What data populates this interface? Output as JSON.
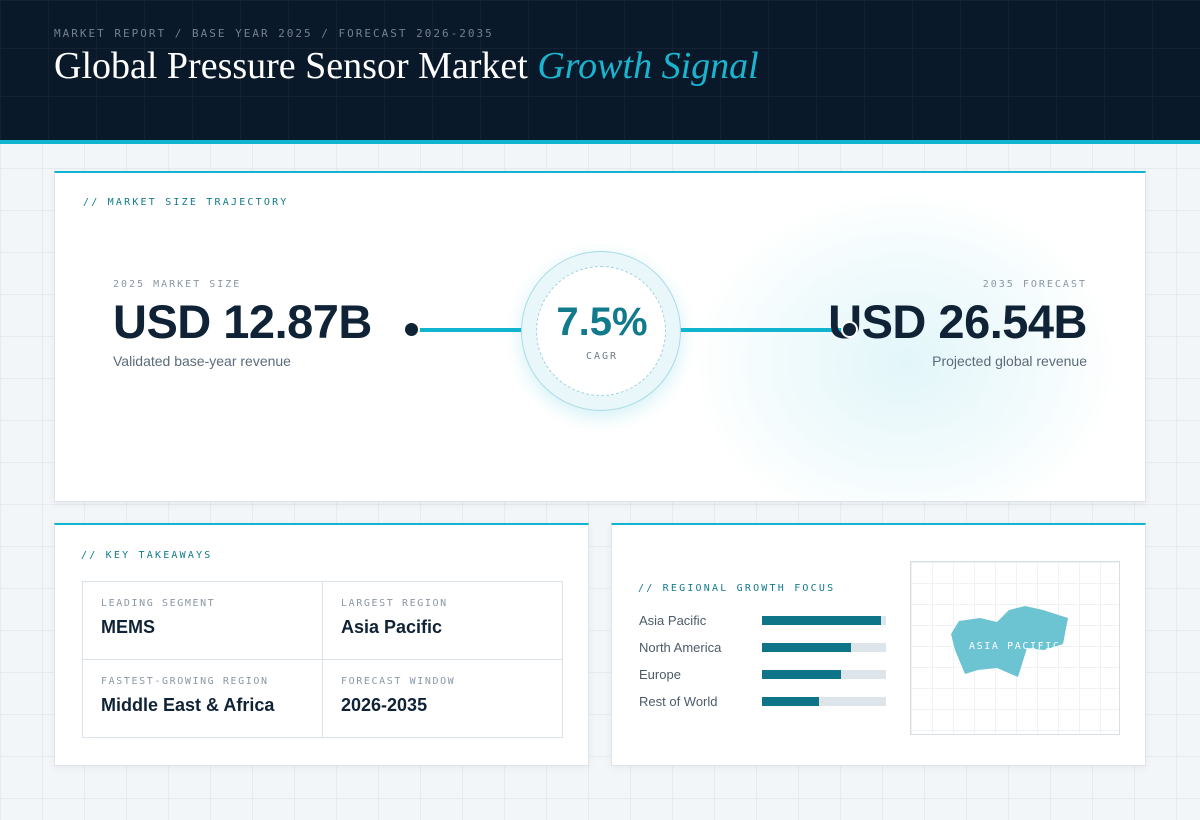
{
  "header": {
    "breadcrumb": "MARKET REPORT / BASE YEAR 2025 / FORECAST 2026-2035",
    "title_main": "Global Pressure Sensor Market",
    "title_accent": "Growth Signal"
  },
  "trajectory": {
    "section_label": "// MARKET SIZE TRAJECTORY",
    "base": {
      "label": "2025 MARKET SIZE",
      "value": "USD 12.87B",
      "note": "Validated base-year revenue"
    },
    "cagr": {
      "value": "7.5%",
      "label": "CAGR"
    },
    "forecast": {
      "label": "2035 FORECAST",
      "value": "USD 26.54B",
      "note": "Projected global revenue"
    }
  },
  "takeaways": {
    "section_label": "// KEY TAKEAWAYS",
    "items": [
      {
        "label": "LEADING SEGMENT",
        "value": "MEMS"
      },
      {
        "label": "LARGEST REGION",
        "value": "Asia Pacific"
      },
      {
        "label": "FASTEST-GROWING REGION",
        "value": "Middle East & Africa"
      },
      {
        "label": "FORECAST WINDOW",
        "value": "2026-2035"
      }
    ]
  },
  "regional": {
    "section_label": "// REGIONAL GROWTH FOCUS",
    "regions": [
      {
        "name": "Asia Pacific",
        "level": 0.96
      },
      {
        "name": "North America",
        "level": 0.72
      },
      {
        "name": "Europe",
        "level": 0.64
      },
      {
        "name": "Rest of World",
        "level": 0.46
      }
    ],
    "map_label": "ASIA PACIFIC"
  },
  "colors": {
    "accent": "#10b4cf",
    "accent_dark": "#117a8c",
    "navy": "#0a1929",
    "bar_fill": "#0e7488",
    "map_fill": "#6cc3d1"
  }
}
